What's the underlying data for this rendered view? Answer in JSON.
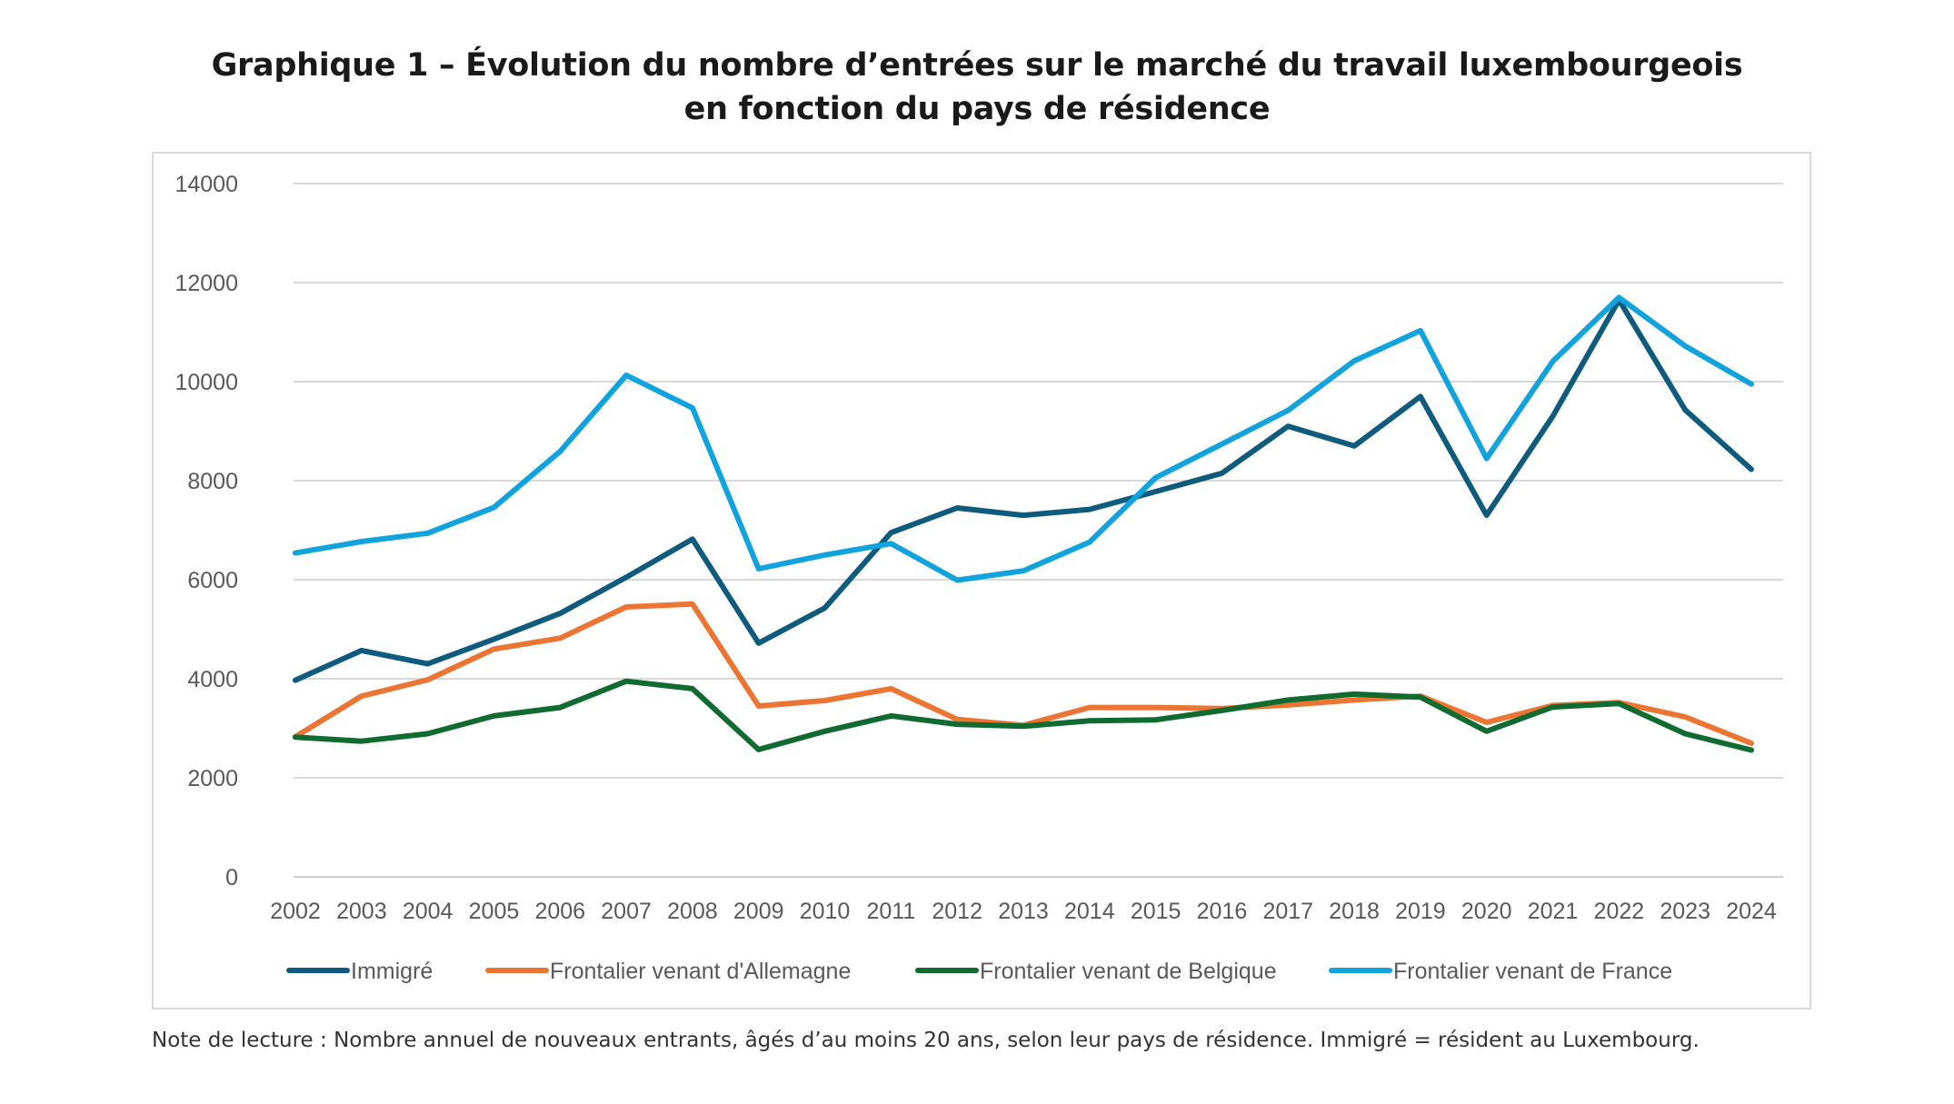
{
  "title": {
    "line1": "Graphique 1 – Évolution du nombre d’entrées sur le marché du travail luxembourgeois",
    "line2": "en fonction du pays de résidence"
  },
  "note": "Note de lecture : Nombre annuel de nouveaux entrants, âgés d’au moins 20 ans, selon leur pays de résidence. Immigré = résident au Luxembourg.",
  "chart_data": {
    "type": "line",
    "x": [
      "2002",
      "2003",
      "2004",
      "2005",
      "2006",
      "2007",
      "2008",
      "2009",
      "2010",
      "2011",
      "2012",
      "2013",
      "2014",
      "2015",
      "2016",
      "2017",
      "2018",
      "2019",
      "2020",
      "2021",
      "2022",
      "2023",
      "2024"
    ],
    "ylim": [
      0,
      14000
    ],
    "yticks": [
      0,
      2000,
      4000,
      6000,
      8000,
      10000,
      12000,
      14000
    ],
    "grid": "horizontal",
    "legend_position": "bottom",
    "series": [
      {
        "name": "Immigré",
        "color": "#0e5b7e",
        "values": [
          3970,
          4570,
          4300,
          4800,
          5320,
          6050,
          6820,
          4720,
          5430,
          6950,
          7450,
          7300,
          7420,
          7780,
          8150,
          9100,
          8700,
          9700,
          7300,
          9300,
          11650,
          9430,
          8230
        ]
      },
      {
        "name": "Frontalier venant d'Allemagne",
        "color": "#ec7534",
        "values": [
          2830,
          3650,
          3980,
          4600,
          4820,
          5450,
          5510,
          3450,
          3560,
          3800,
          3180,
          3060,
          3420,
          3420,
          3400,
          3470,
          3570,
          3650,
          3120,
          3460,
          3520,
          3230,
          2700
        ]
      },
      {
        "name": "Frontalier venant de Belgique",
        "color": "#0f6b2f",
        "values": [
          2820,
          2740,
          2890,
          3250,
          3420,
          3950,
          3800,
          2570,
          2940,
          3250,
          3080,
          3040,
          3150,
          3170,
          3360,
          3570,
          3690,
          3630,
          2940,
          3430,
          3500,
          2890,
          2560
        ]
      },
      {
        "name": "Frontalier venant de France",
        "color": "#11a3dd",
        "values": [
          6540,
          6770,
          6940,
          7460,
          8590,
          10130,
          9470,
          6220,
          6500,
          6730,
          5990,
          6180,
          6760,
          8060,
          8740,
          9420,
          10420,
          11030,
          8450,
          10410,
          11700,
          10720,
          9950
        ]
      }
    ]
  }
}
